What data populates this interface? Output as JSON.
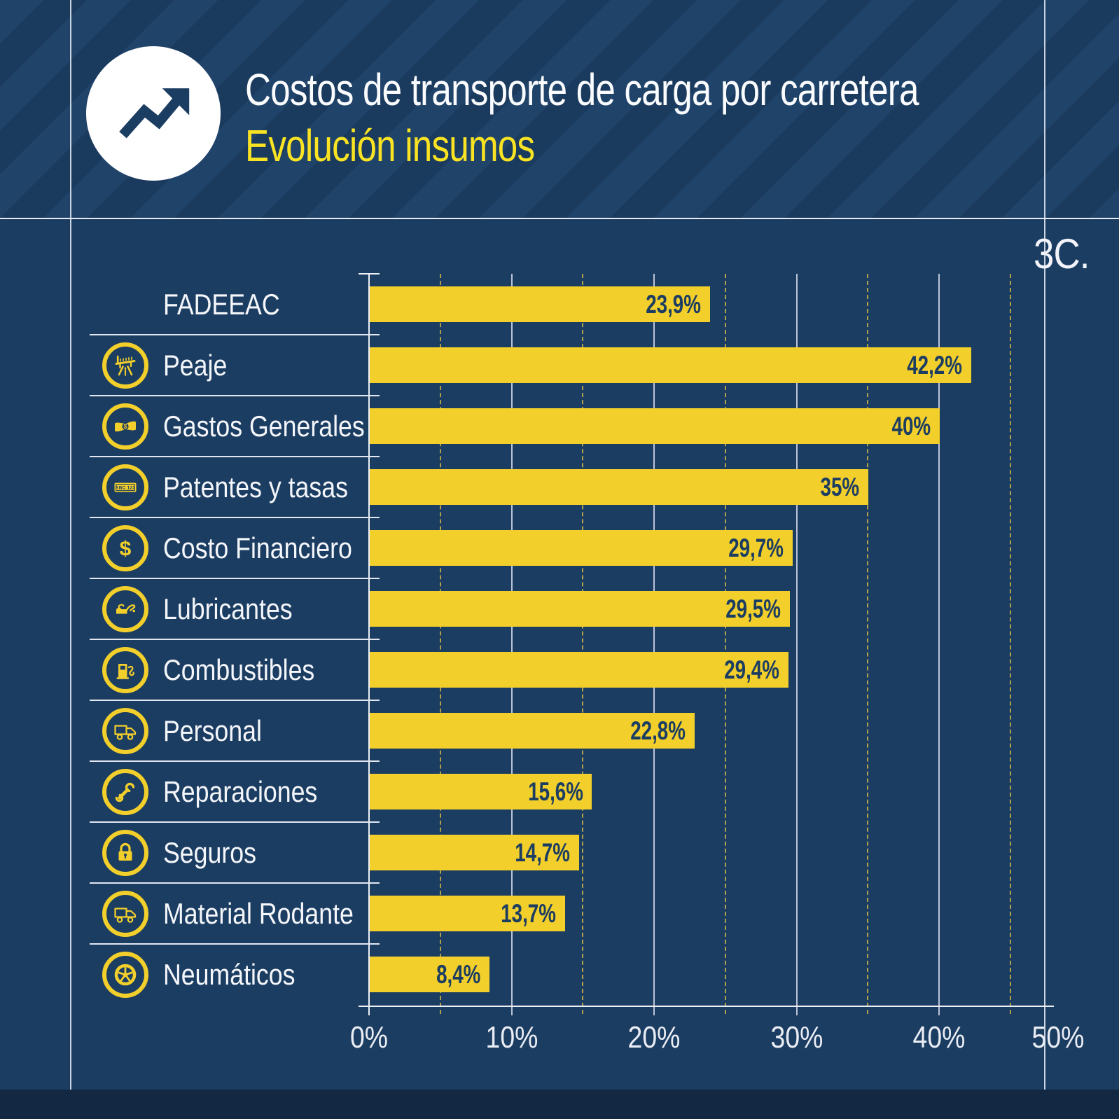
{
  "header": {
    "title": "Costos de transporte de carga por carretera",
    "subtitle": "Evolución insumos",
    "icon": "trend-up-icon"
  },
  "figure_label": "3C.",
  "colors": {
    "background_navy": "#1C3D62",
    "header_stripe_light": "#20436A",
    "header_stripe_dark": "#1B3B5E",
    "bar_yellow": "#F2CF2B",
    "subtitle_yellow": "#F9E322",
    "text_white": "#FFFFFF",
    "value_text_navy": "#1C3D62",
    "grid_solid": "#BCC4D8",
    "grid_dashed": "#B0A04E",
    "footer_band": "#132843"
  },
  "license_plate_text": "ABC 123",
  "chart_data": {
    "type": "bar",
    "orientation": "horizontal",
    "title": "Costos de transporte de carga por carretera",
    "subtitle": "Evolución insumos",
    "categories": [
      "FADEEAC",
      "Peaje",
      "Gastos Generales",
      "Patentes y tasas",
      "Costo Financiero",
      "Lubricantes",
      "Combustibles",
      "Personal",
      "Reparaciones",
      "Seguros",
      "Material Rodante",
      "Neumáticos"
    ],
    "values": [
      23.9,
      42.2,
      40,
      35,
      29.7,
      29.5,
      29.4,
      22.8,
      15.6,
      14.7,
      13.7,
      8.4
    ],
    "value_labels": [
      "23,9%",
      "42,2%",
      "40%",
      "35%",
      "29,7%",
      "29,5%",
      "29,4%",
      "22,8%",
      "15,6%",
      "14,7%",
      "13,7%",
      "8,4%"
    ],
    "icons": [
      null,
      "toll-barrier-icon",
      "money-bill-icon",
      "license-plate-icon",
      "dollar-sign-icon",
      "oil-can-icon",
      "fuel-pump-icon",
      "truck-icon",
      "wrench-icon",
      "padlock-icon",
      "truck-icon",
      "tire-icon"
    ],
    "x_axis": {
      "min": 0,
      "max": 50,
      "tick_labels": [
        "0%",
        "10%",
        "20%",
        "30%",
        "40%",
        "50%"
      ],
      "solid_grid_step_pct": 10,
      "dashed_grid_step_pct": 5
    },
    "grid": true,
    "legend": false
  }
}
